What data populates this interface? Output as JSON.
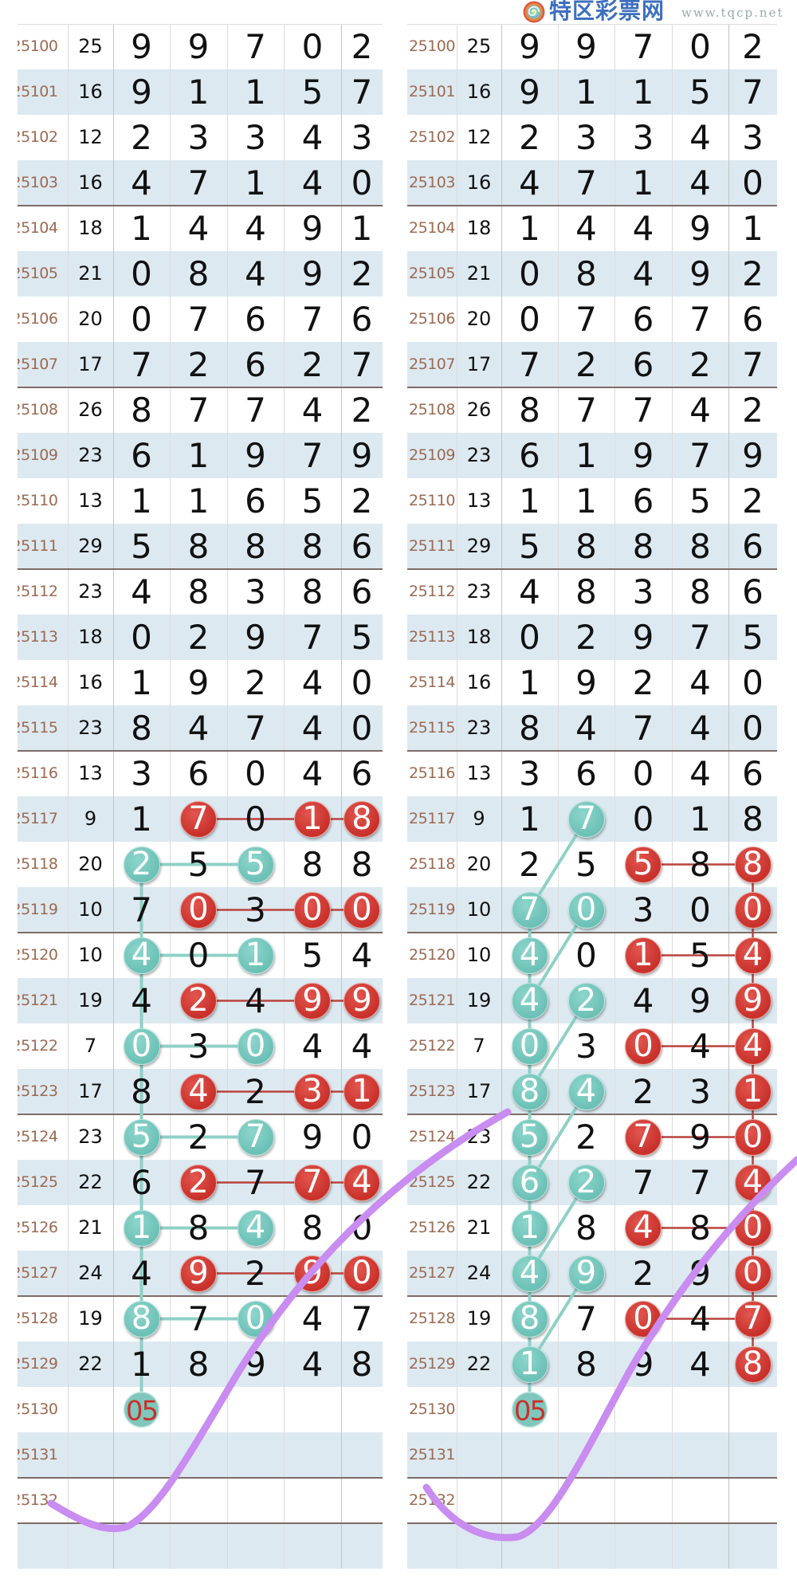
{
  "logo": {
    "name": "特区彩票网",
    "url": "www.tqcp.net"
  },
  "colors": {
    "red_ball": "#c8302a",
    "teal_ball": "#6cc0b6",
    "period_text": "#9b6a52",
    "row_alt": "#dde9f1",
    "check_mark": "#c98cf0"
  },
  "rows": [
    {
      "period": "25100",
      "sum": "25",
      "digits": [
        "9",
        "9",
        "7",
        "0",
        "2"
      ]
    },
    {
      "period": "25101",
      "sum": "16",
      "digits": [
        "9",
        "1",
        "1",
        "5",
        "7"
      ]
    },
    {
      "period": "25102",
      "sum": "12",
      "digits": [
        "2",
        "3",
        "3",
        "4",
        "3"
      ]
    },
    {
      "period": "25103",
      "sum": "16",
      "digits": [
        "4",
        "7",
        "1",
        "4",
        "0"
      ]
    },
    {
      "period": "25104",
      "sum": "18",
      "digits": [
        "1",
        "4",
        "4",
        "9",
        "1"
      ]
    },
    {
      "period": "25105",
      "sum": "21",
      "digits": [
        "0",
        "8",
        "4",
        "9",
        "2"
      ]
    },
    {
      "period": "25106",
      "sum": "20",
      "digits": [
        "0",
        "7",
        "6",
        "7",
        "6"
      ]
    },
    {
      "period": "25107",
      "sum": "17",
      "digits": [
        "7",
        "2",
        "6",
        "2",
        "7"
      ]
    },
    {
      "period": "25108",
      "sum": "26",
      "digits": [
        "8",
        "7",
        "7",
        "4",
        "2"
      ]
    },
    {
      "period": "25109",
      "sum": "23",
      "digits": [
        "6",
        "1",
        "9",
        "7",
        "9"
      ]
    },
    {
      "period": "25110",
      "sum": "13",
      "digits": [
        "1",
        "1",
        "6",
        "5",
        "2"
      ]
    },
    {
      "period": "25111",
      "sum": "29",
      "digits": [
        "5",
        "8",
        "8",
        "8",
        "6"
      ]
    },
    {
      "period": "25112",
      "sum": "23",
      "digits": [
        "4",
        "8",
        "3",
        "8",
        "6"
      ]
    },
    {
      "period": "25113",
      "sum": "18",
      "digits": [
        "0",
        "2",
        "9",
        "7",
        "5"
      ]
    },
    {
      "period": "25114",
      "sum": "16",
      "digits": [
        "1",
        "9",
        "2",
        "4",
        "0"
      ]
    },
    {
      "period": "25115",
      "sum": "23",
      "digits": [
        "8",
        "4",
        "7",
        "4",
        "0"
      ]
    },
    {
      "period": "25116",
      "sum": "13",
      "digits": [
        "3",
        "6",
        "0",
        "4",
        "6"
      ]
    },
    {
      "period": "25117",
      "sum": "9",
      "digits": [
        "1",
        "7",
        "0",
        "1",
        "8"
      ]
    },
    {
      "period": "25118",
      "sum": "20",
      "digits": [
        "2",
        "5",
        "5",
        "8",
        "8"
      ]
    },
    {
      "period": "25119",
      "sum": "10",
      "digits": [
        "7",
        "0",
        "3",
        "0",
        "0"
      ]
    },
    {
      "period": "25120",
      "sum": "10",
      "digits": [
        "4",
        "0",
        "1",
        "5",
        "4"
      ]
    },
    {
      "period": "25121",
      "sum": "19",
      "digits": [
        "4",
        "2",
        "4",
        "9",
        "9"
      ]
    },
    {
      "period": "25122",
      "sum": "7",
      "digits": [
        "0",
        "3",
        "0",
        "4",
        "4"
      ]
    },
    {
      "period": "25123",
      "sum": "17",
      "digits": [
        "8",
        "4",
        "2",
        "3",
        "1"
      ]
    },
    {
      "period": "25124",
      "sum": "23",
      "digits": [
        "5",
        "2",
        "7",
        "9",
        "0"
      ]
    },
    {
      "period": "25125",
      "sum": "22",
      "digits": [
        "6",
        "2",
        "7",
        "7",
        "4"
      ]
    },
    {
      "period": "25126",
      "sum": "21",
      "digits": [
        "1",
        "8",
        "4",
        "8",
        "0"
      ]
    },
    {
      "period": "25127",
      "sum": "24",
      "digits": [
        "4",
        "9",
        "2",
        "9",
        "0"
      ]
    },
    {
      "period": "25128",
      "sum": "19",
      "digits": [
        "8",
        "7",
        "0",
        "4",
        "7"
      ]
    },
    {
      "period": "25129",
      "sum": "22",
      "digits": [
        "1",
        "8",
        "9",
        "4",
        "8"
      ]
    },
    {
      "period": "25130",
      "sum": "",
      "digits": [
        "",
        "",
        "",
        "",
        ""
      ]
    },
    {
      "period": "25131",
      "sum": "",
      "digits": [
        "",
        "",
        "",
        "",
        ""
      ]
    },
    {
      "period": "25132",
      "sum": "",
      "digits": [
        "",
        "",
        "",
        "",
        ""
      ]
    },
    {
      "period": "",
      "sum": "",
      "digits": [
        "",
        "",
        "",
        "",
        ""
      ]
    }
  ],
  "panels": [
    {
      "id": "left",
      "balls": [
        [
          "25117",
          1,
          "red"
        ],
        [
          "25117",
          3,
          "red"
        ],
        [
          "25117",
          4,
          "red"
        ],
        [
          "25118",
          0,
          "teal"
        ],
        [
          "25118",
          2,
          "teal"
        ],
        [
          "25119",
          1,
          "red"
        ],
        [
          "25119",
          3,
          "red"
        ],
        [
          "25119",
          4,
          "red"
        ],
        [
          "25120",
          0,
          "teal"
        ],
        [
          "25120",
          2,
          "teal"
        ],
        [
          "25121",
          1,
          "red"
        ],
        [
          "25121",
          3,
          "red"
        ],
        [
          "25121",
          4,
          "red"
        ],
        [
          "25122",
          0,
          "teal"
        ],
        [
          "25122",
          2,
          "teal"
        ],
        [
          "25123",
          1,
          "red"
        ],
        [
          "25123",
          3,
          "red"
        ],
        [
          "25123",
          4,
          "red"
        ],
        [
          "25124",
          0,
          "teal"
        ],
        [
          "25124",
          2,
          "teal"
        ],
        [
          "25125",
          1,
          "red"
        ],
        [
          "25125",
          3,
          "red"
        ],
        [
          "25125",
          4,
          "red"
        ],
        [
          "25126",
          0,
          "teal"
        ],
        [
          "25126",
          2,
          "teal"
        ],
        [
          "25127",
          1,
          "red"
        ],
        [
          "25127",
          3,
          "red"
        ],
        [
          "25127",
          4,
          "red"
        ],
        [
          "25128",
          0,
          "teal"
        ],
        [
          "25128",
          2,
          "teal"
        ]
      ],
      "links": [
        [
          "red",
          [
            "25117",
            1
          ],
          [
            "25117",
            4
          ]
        ],
        [
          "red",
          [
            "25119",
            1
          ],
          [
            "25119",
            4
          ]
        ],
        [
          "red",
          [
            "25121",
            1
          ],
          [
            "25121",
            4
          ]
        ],
        [
          "red",
          [
            "25123",
            1
          ],
          [
            "25123",
            4
          ]
        ],
        [
          "red",
          [
            "25125",
            1
          ],
          [
            "25125",
            4
          ]
        ],
        [
          "red",
          [
            "25127",
            1
          ],
          [
            "25127",
            4
          ]
        ],
        [
          "teal",
          [
            "25118",
            0
          ],
          [
            "25118",
            2
          ]
        ],
        [
          "teal",
          [
            "25120",
            0
          ],
          [
            "25120",
            2
          ]
        ],
        [
          "teal",
          [
            "25122",
            0
          ],
          [
            "25122",
            2
          ]
        ],
        [
          "teal",
          [
            "25124",
            0
          ],
          [
            "25124",
            2
          ]
        ],
        [
          "teal",
          [
            "25126",
            0
          ],
          [
            "25126",
            2
          ]
        ],
        [
          "teal",
          [
            "25128",
            0
          ],
          [
            "25128",
            2
          ]
        ],
        [
          "teal",
          [
            "25118",
            0
          ],
          [
            "25130",
            0
          ]
        ]
      ],
      "forecast": {
        "period": "25130",
        "col": 0,
        "text": "05"
      }
    },
    {
      "id": "right",
      "balls": [
        [
          "25117",
          1,
          "teal"
        ],
        [
          "25118",
          2,
          "red"
        ],
        [
          "25118",
          4,
          "red"
        ],
        [
          "25119",
          0,
          "teal"
        ],
        [
          "25119",
          1,
          "teal"
        ],
        [
          "25119",
          4,
          "red"
        ],
        [
          "25120",
          0,
          "teal"
        ],
        [
          "25120",
          2,
          "red"
        ],
        [
          "25120",
          4,
          "red"
        ],
        [
          "25121",
          0,
          "teal"
        ],
        [
          "25121",
          1,
          "teal"
        ],
        [
          "25121",
          4,
          "red"
        ],
        [
          "25122",
          0,
          "teal"
        ],
        [
          "25122",
          2,
          "red"
        ],
        [
          "25122",
          4,
          "red"
        ],
        [
          "25123",
          0,
          "teal"
        ],
        [
          "25123",
          1,
          "teal"
        ],
        [
          "25123",
          4,
          "red"
        ],
        [
          "25124",
          0,
          "teal"
        ],
        [
          "25124",
          2,
          "red"
        ],
        [
          "25124",
          4,
          "red"
        ],
        [
          "25125",
          0,
          "teal"
        ],
        [
          "25125",
          1,
          "teal"
        ],
        [
          "25125",
          4,
          "red"
        ],
        [
          "25126",
          0,
          "teal"
        ],
        [
          "25126",
          2,
          "red"
        ],
        [
          "25126",
          4,
          "red"
        ],
        [
          "25127",
          0,
          "teal"
        ],
        [
          "25127",
          1,
          "teal"
        ],
        [
          "25127",
          4,
          "red"
        ],
        [
          "25128",
          0,
          "teal"
        ],
        [
          "25128",
          2,
          "red"
        ],
        [
          "25128",
          4,
          "red"
        ],
        [
          "25129",
          0,
          "teal"
        ],
        [
          "25129",
          4,
          "red"
        ]
      ],
      "links": [
        [
          "red",
          [
            "25118",
            2
          ],
          [
            "25118",
            4
          ]
        ],
        [
          "red",
          [
            "25120",
            2
          ],
          [
            "25120",
            4
          ]
        ],
        [
          "red",
          [
            "25122",
            2
          ],
          [
            "25122",
            4
          ]
        ],
        [
          "red",
          [
            "25124",
            2
          ],
          [
            "25124",
            4
          ]
        ],
        [
          "red",
          [
            "25126",
            2
          ],
          [
            "25126",
            4
          ]
        ],
        [
          "red",
          [
            "25128",
            2
          ],
          [
            "25128",
            4
          ]
        ],
        [
          "red",
          [
            "25118",
            4
          ],
          [
            "25129",
            4
          ]
        ],
        [
          "teal",
          [
            "25119",
            0
          ],
          [
            "25130",
            0
          ]
        ],
        [
          "teal",
          [
            "25117",
            1
          ],
          [
            "25119",
            0
          ]
        ],
        [
          "teal",
          [
            "25119",
            1
          ],
          [
            "25121",
            0
          ]
        ],
        [
          "teal",
          [
            "25121",
            1
          ],
          [
            "25123",
            0
          ]
        ],
        [
          "teal",
          [
            "25123",
            1
          ],
          [
            "25125",
            0
          ]
        ],
        [
          "teal",
          [
            "25125",
            1
          ],
          [
            "25127",
            0
          ]
        ],
        [
          "teal",
          [
            "25127",
            1
          ],
          [
            "25129",
            0
          ]
        ]
      ],
      "forecast": {
        "period": "25130",
        "col": 0,
        "text": "05"
      }
    }
  ]
}
